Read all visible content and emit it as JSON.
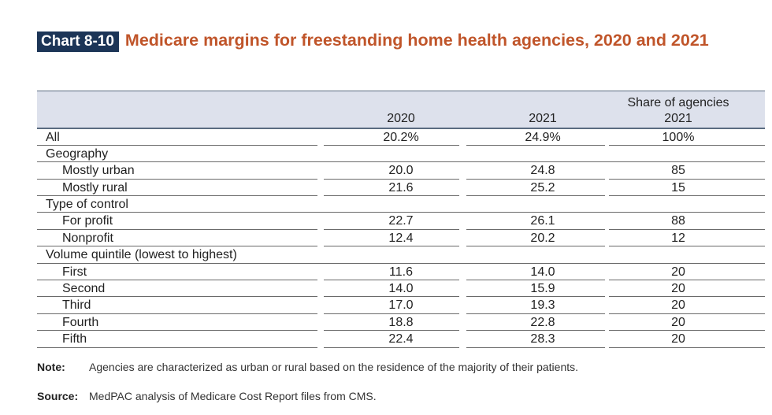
{
  "title": {
    "tag": "Chart 8-10",
    "text": "Medicare margins for freestanding home health agencies, 2020 and 2021"
  },
  "colors": {
    "title": "#c0552a",
    "tag_bg": "#1c3557",
    "header_band": "#dde1ec"
  },
  "table": {
    "headers": {
      "col1": "2020",
      "col2": "2021",
      "col3_line1": "Share of agencies",
      "col3_line2": "2021"
    },
    "rows": [
      {
        "label": "All",
        "v2020": "20.2%",
        "v2021": "24.9%",
        "share": "100%",
        "indent": false
      },
      {
        "label": "Geography",
        "v2020": "",
        "v2021": "",
        "share": "",
        "indent": false
      },
      {
        "label": "Mostly urban",
        "v2020": "20.0",
        "v2021": "24.8",
        "share": "85",
        "indent": true
      },
      {
        "label": "Mostly rural",
        "v2020": "21.6",
        "v2021": "25.2",
        "share": "15",
        "indent": true
      },
      {
        "label": "Type of control",
        "v2020": "",
        "v2021": "",
        "share": "",
        "indent": false
      },
      {
        "label": "For profit",
        "v2020": "22.7",
        "v2021": "26.1",
        "share": "88",
        "indent": true
      },
      {
        "label": "Nonprofit",
        "v2020": "12.4",
        "v2021": "20.2",
        "share": "12",
        "indent": true
      },
      {
        "label": "Volume quintile (lowest to highest)",
        "v2020": "",
        "v2021": "",
        "share": "",
        "indent": false
      },
      {
        "label": "First",
        "v2020": "11.6",
        "v2021": "14.0",
        "share": "20",
        "indent": true
      },
      {
        "label": "Second",
        "v2020": "14.0",
        "v2021": "15.9",
        "share": "20",
        "indent": true
      },
      {
        "label": "Third",
        "v2020": "17.0",
        "v2021": "19.3",
        "share": "20",
        "indent": true
      },
      {
        "label": "Fourth",
        "v2020": "18.8",
        "v2021": "22.8",
        "share": "20",
        "indent": true
      },
      {
        "label": "Fifth",
        "v2020": "22.4",
        "v2021": "28.3",
        "share": "20",
        "indent": true
      }
    ]
  },
  "note": {
    "label": "Note:",
    "text": "Agencies are characterized as urban or rural based on the residence of the majority of their patients."
  },
  "source": {
    "label": "Source:",
    "text": "MedPAC analysis of Medicare Cost Report files from CMS."
  }
}
